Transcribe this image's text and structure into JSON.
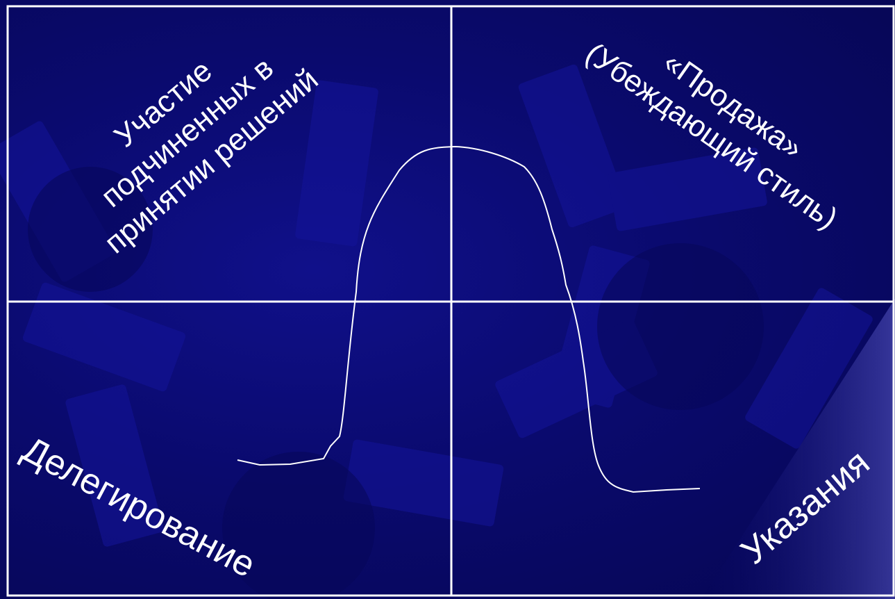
{
  "slide": {
    "colors": {
      "background": "#0a0a6e",
      "lines": "#ffffff",
      "text": "#ffffff"
    },
    "quadrants": {
      "top_left": {
        "line1": "Участие",
        "line2": "подчиненных в",
        "line3": "принятии решений"
      },
      "top_right": {
        "line1": "«Продажа»",
        "line2": "(Убеждающий стиль)"
      },
      "bottom_left": {
        "label": "Делегирование"
      },
      "bottom_right": {
        "label": "Указания"
      }
    }
  }
}
